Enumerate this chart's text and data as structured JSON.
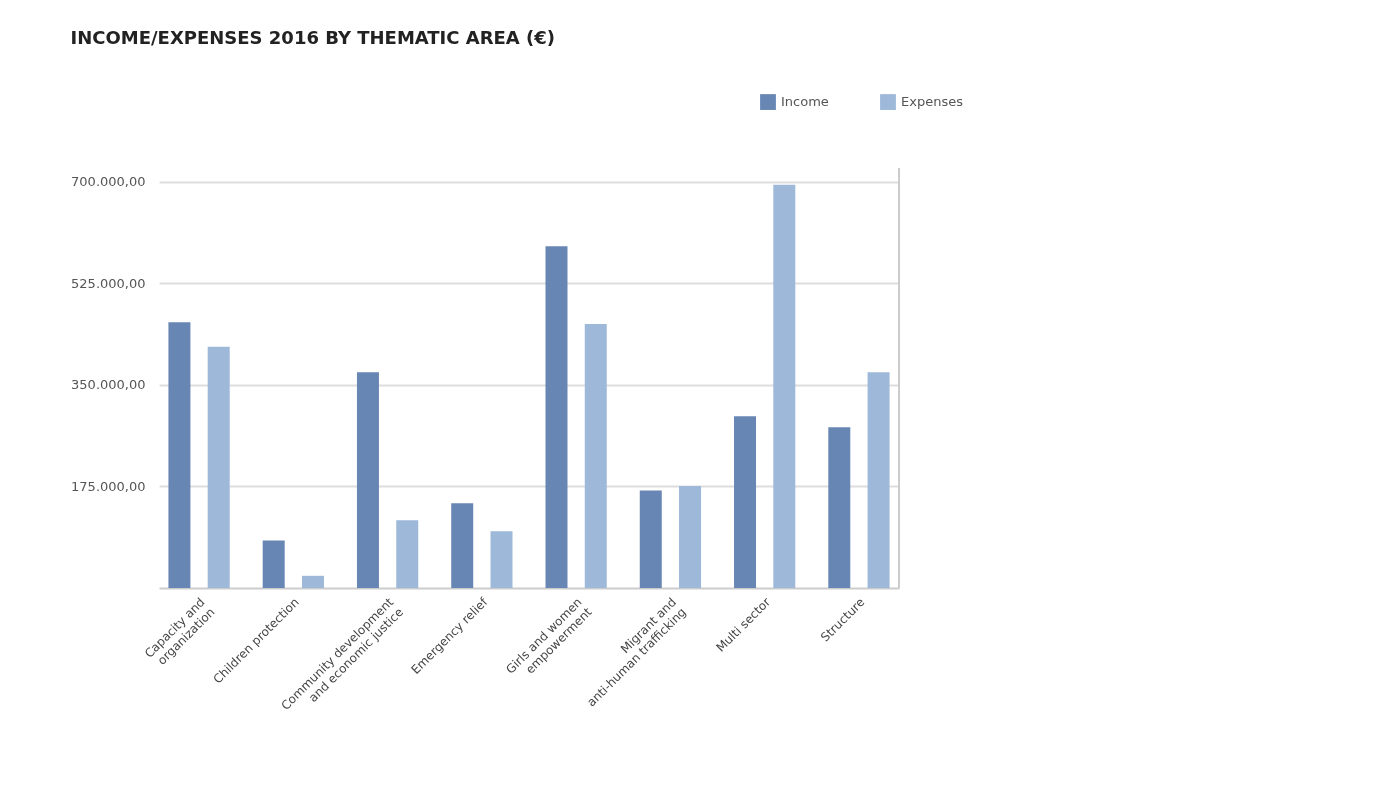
{
  "chart_data": {
    "type": "bar",
    "title": "INCOME/EXPENSES 2016 BY THEMATIC AREA (€)",
    "categories": [
      "Capacity and\norganization",
      "Children protection",
      "Community development\nand economic justice",
      "Emergency relief",
      "Girls and women\nempowerment",
      "Migrant and\nanti-human trafficking",
      "Multi sector",
      "Structure"
    ],
    "series": [
      {
        "name": "Income",
        "color": "#6886b4",
        "values": [
          458000,
          82000,
          372000,
          146000,
          589000,
          168000,
          296000,
          277000
        ]
      },
      {
        "name": "Expenses",
        "color": "#9db8d8",
        "values": [
          416000,
          21000,
          117000,
          98000,
          455000,
          176000,
          695000,
          372000
        ]
      }
    ],
    "ylim": [
      0,
      724000
    ],
    "yticks": [
      {
        "value": 175000,
        "label": "175.000,00"
      },
      {
        "value": 350000,
        "label": "350.000,00"
      },
      {
        "value": 525000,
        "label": "525.000,00"
      },
      {
        "value": 700000,
        "label": "700.000,00"
      }
    ],
    "grid": "y",
    "legend": "top right"
  }
}
